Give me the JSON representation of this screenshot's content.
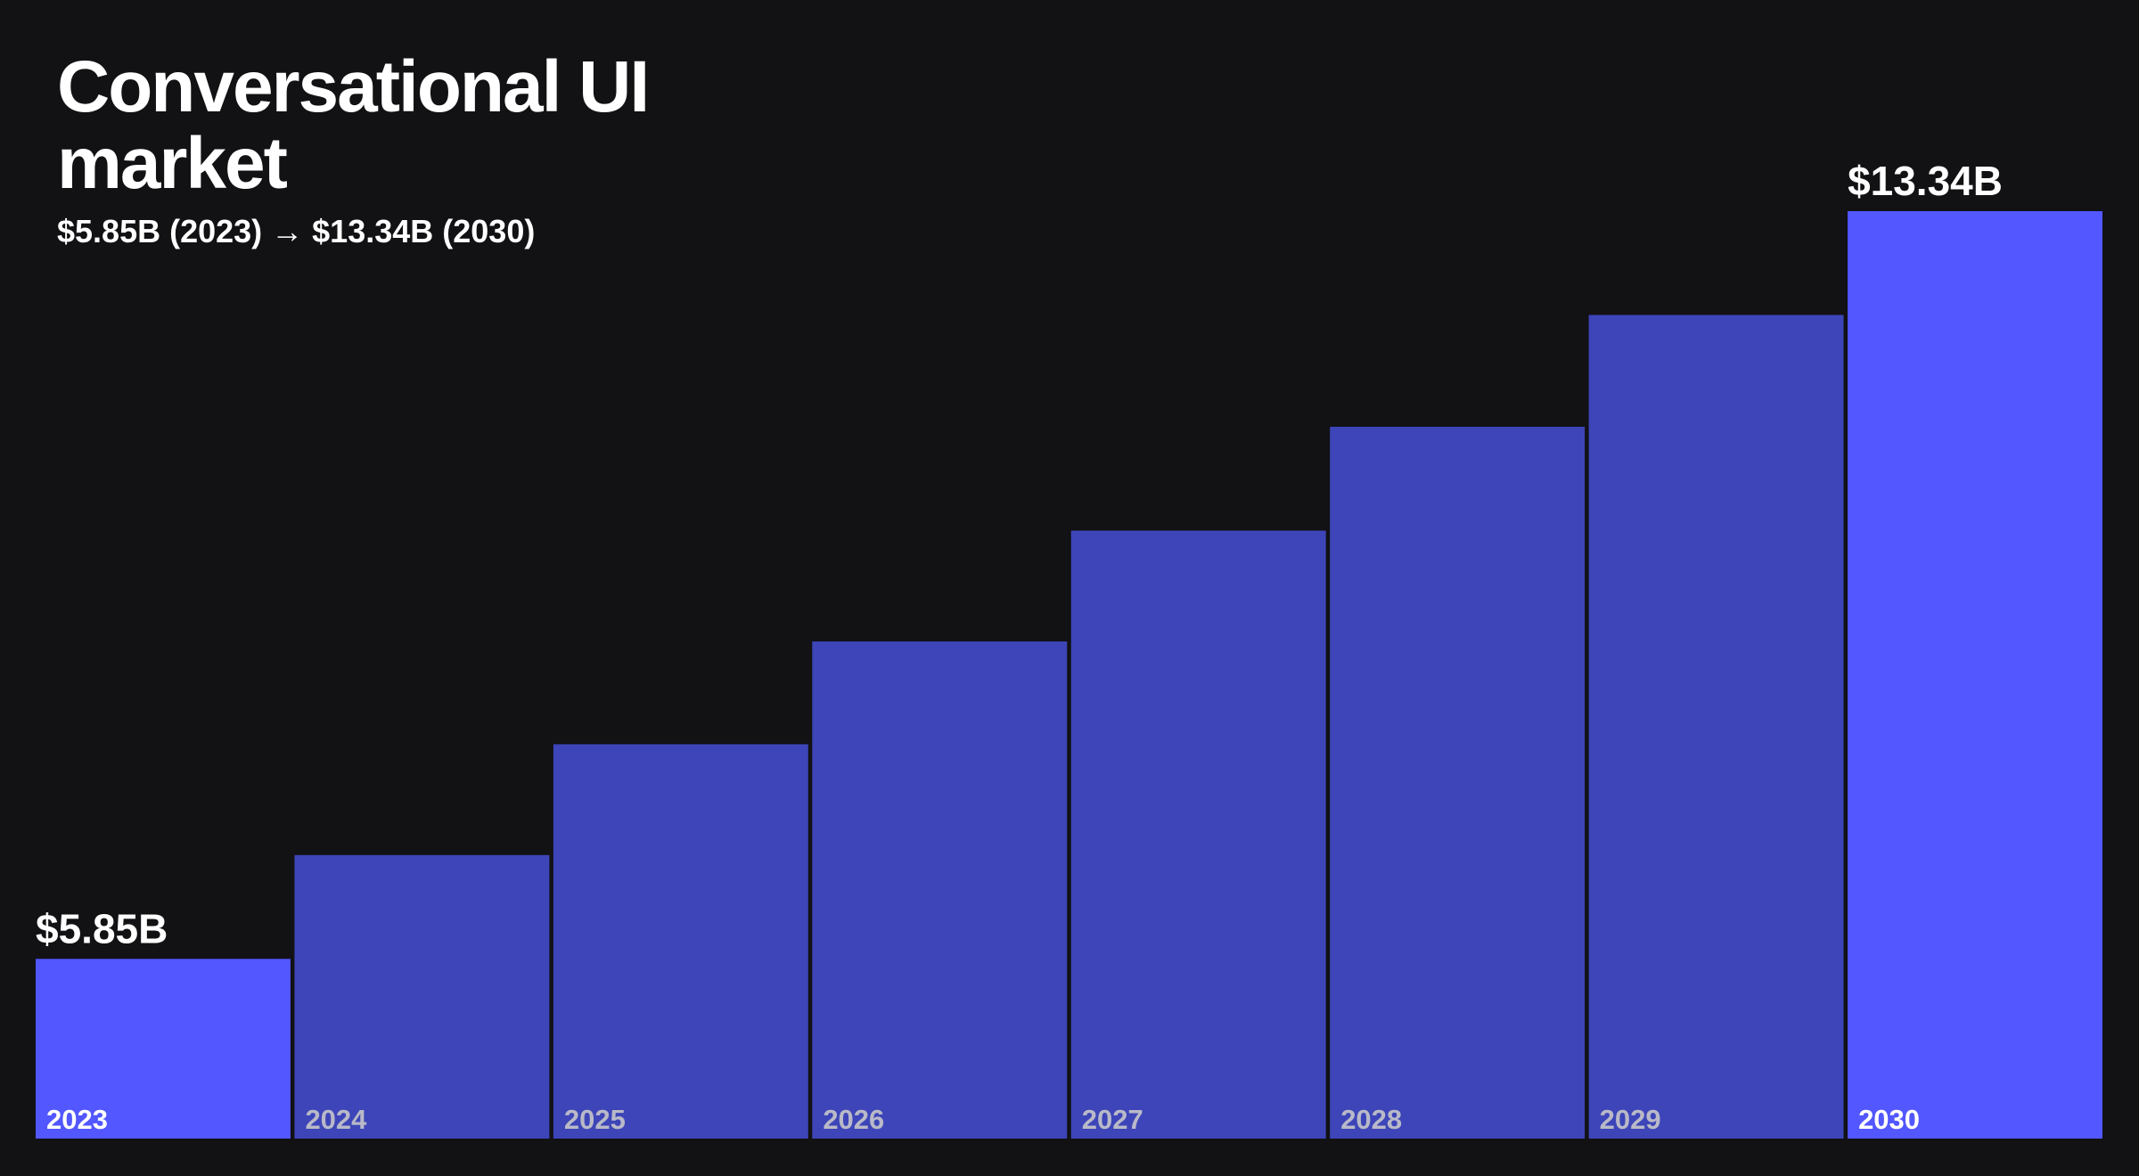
{
  "chart_data": {
    "type": "bar",
    "title": "Conversational UI market",
    "subtitle": "$5.85B (2023) → $13.34B (2030)",
    "categories": [
      "2023",
      "2024",
      "2025",
      "2026",
      "2027",
      "2028",
      "2029",
      "2030"
    ],
    "values": [
      5.85,
      6.89,
      8.0,
      9.03,
      10.14,
      11.18,
      12.3,
      13.34
    ],
    "value_labels": [
      "$5.85B",
      null,
      null,
      null,
      null,
      null,
      null,
      "$13.34B"
    ],
    "colors": [
      "#5257ff",
      "#3d45b8",
      "#3d45b8",
      "#3d45b8",
      "#3d45b8",
      "#3d45b8",
      "#3d45b8",
      "#5257ff"
    ],
    "ylim": [
      4.05,
      13.34
    ]
  }
}
